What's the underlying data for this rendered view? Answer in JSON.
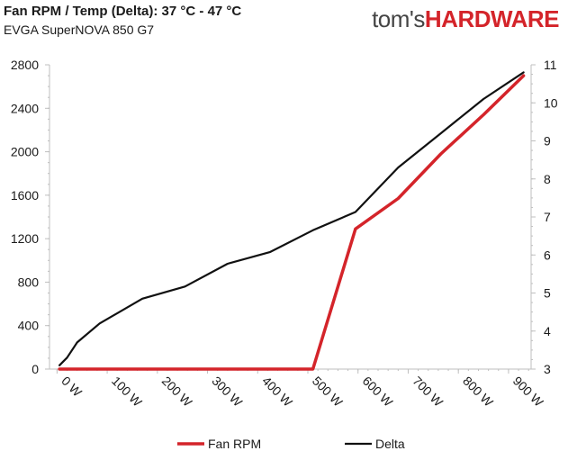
{
  "header": {
    "title": "Fan RPM / Temp (Delta): 37 °C - 47 °C",
    "subtitle": "EVGA SuperNOVA 850 G7",
    "logo_part1": "tom's",
    "logo_part2": "HARDWARE"
  },
  "colors": {
    "fan": "#d4242a",
    "delta": "#111111",
    "logo_accent": "#d4242a",
    "axis": "#bfbfbf"
  },
  "chart_data": {
    "type": "line",
    "x_unit_suffix": " W",
    "xlim": [
      -15,
      945
    ],
    "x_ticks": [
      0,
      100,
      200,
      300,
      400,
      500,
      600,
      700,
      800,
      900
    ],
    "x_tick_labels": [
      "0 W",
      "100 W",
      "200 W",
      "300 W",
      "400 W",
      "500 W",
      "600 W",
      "700 W",
      "800 W",
      "900 W"
    ],
    "y_left": {
      "label": "",
      "lim": [
        0,
        2800
      ],
      "ticks": [
        0,
        400,
        800,
        1200,
        1600,
        2000,
        2400,
        2800
      ]
    },
    "y_right": {
      "label": "",
      "lim": [
        3,
        11
      ],
      "ticks": [
        3,
        4,
        5,
        6,
        7,
        8,
        9,
        10,
        11
      ]
    },
    "legend_position": "bottom",
    "series": [
      {
        "name": "Fan RPM",
        "axis": "left",
        "x": [
          5,
          20,
          40,
          85,
          170,
          255,
          340,
          425,
          480,
          510,
          595,
          680,
          765,
          850,
          930
        ],
        "values": [
          0,
          0,
          0,
          0,
          0,
          0,
          0,
          0,
          0,
          0,
          1290,
          1570,
          1980,
          2340,
          2700
        ]
      },
      {
        "name": "Delta",
        "axis": "right",
        "x": [
          5,
          20,
          40,
          85,
          170,
          255,
          340,
          425,
          510,
          595,
          680,
          765,
          850,
          930
        ],
        "values": [
          3.1,
          3.3,
          3.7,
          4.2,
          4.85,
          5.17,
          5.77,
          6.08,
          6.65,
          7.13,
          8.3,
          9.2,
          10.1,
          10.8
        ]
      }
    ]
  }
}
